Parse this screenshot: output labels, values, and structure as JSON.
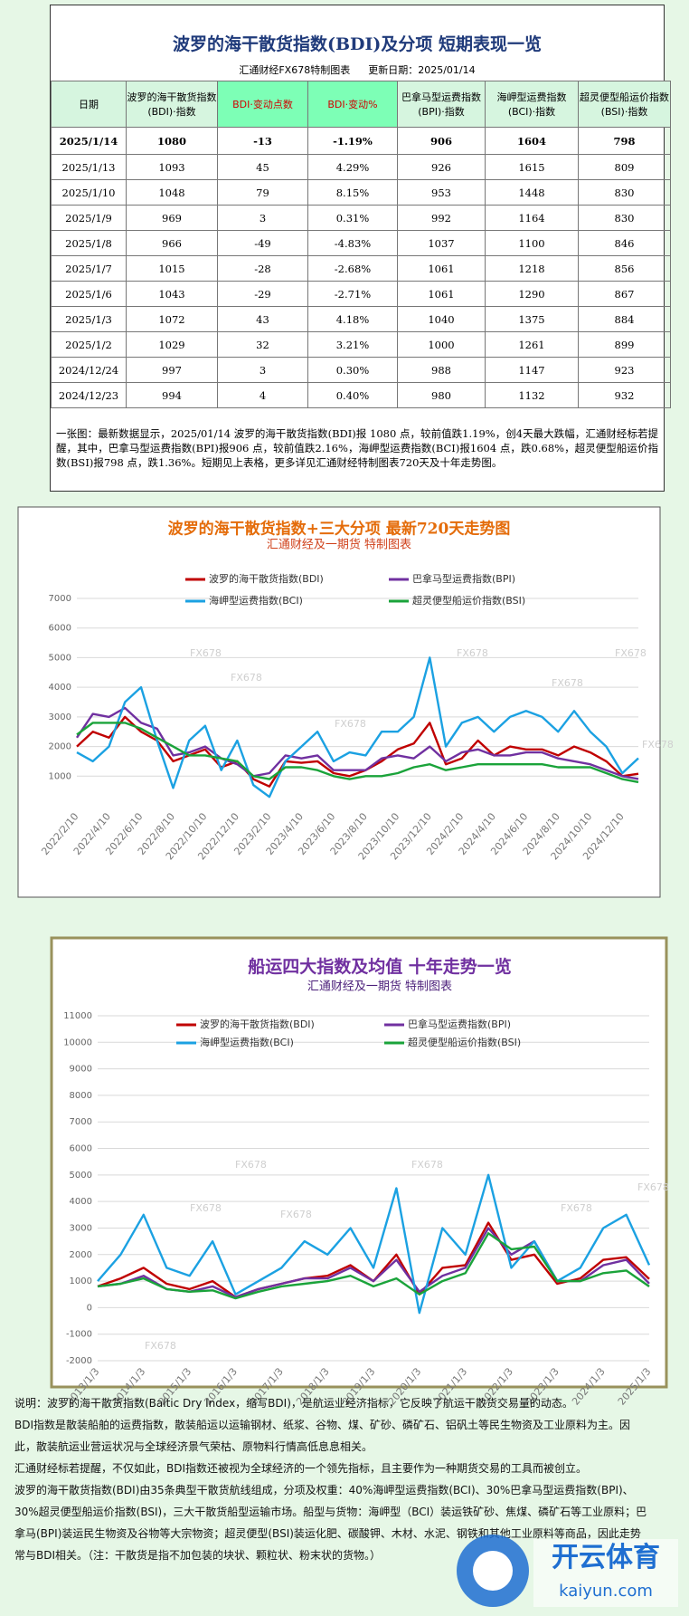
{
  "header": {
    "title": "波罗的海干散货指数(BDI)及分项  短期表现一览",
    "source": "汇通财经FX678特制图表",
    "updated": "更新日期：2025/01/14"
  },
  "table": {
    "header": [
      "日期",
      "波罗的海干散货指数(BDI)·指数",
      "BDI·变动点数",
      "BDI·变动%",
      "巴拿马型运费指数(BPI)·指数",
      "海岬型运费指数(BCI)·指数",
      "超灵便型船运价指数(BSI)·指数"
    ],
    "rows": [
      [
        "2025/1/14",
        "1080",
        "-13",
        "-1.19%",
        "906",
        "1604",
        "798"
      ],
      [
        "2025/1/13",
        "1093",
        "45",
        "4.29%",
        "926",
        "1615",
        "809"
      ],
      [
        "2025/1/10",
        "1048",
        "79",
        "8.15%",
        "953",
        "1448",
        "830"
      ],
      [
        "2025/1/9",
        "969",
        "3",
        "0.31%",
        "992",
        "1164",
        "830"
      ],
      [
        "2025/1/8",
        "966",
        "-49",
        "-4.83%",
        "1037",
        "1100",
        "846"
      ],
      [
        "2025/1/7",
        "1015",
        "-28",
        "-2.68%",
        "1061",
        "1218",
        "856"
      ],
      [
        "2025/1/6",
        "1043",
        "-29",
        "-2.71%",
        "1061",
        "1290",
        "867"
      ],
      [
        "2025/1/3",
        "1072",
        "43",
        "4.18%",
        "1040",
        "1375",
        "884"
      ],
      [
        "2025/1/2",
        "1029",
        "32",
        "3.21%",
        "1000",
        "1261",
        "899"
      ],
      [
        "2024/12/24",
        "997",
        "3",
        "0.30%",
        "988",
        "1147",
        "923"
      ],
      [
        "2024/12/23",
        "994",
        "4",
        "0.40%",
        "980",
        "1132",
        "932"
      ]
    ],
    "note": "一张图：最新数据显示，2025/01/14 波罗的海干散货指数(BDI)报 1080 点，较前值跌1.19%，创4天最大跌幅，汇通财经标若提醒，其中，巴拿马型运费指数(BPI)报906 点，较前值跌2.16%，海岬型运费指数(BCI)报1604 点，跌0.68%，超灵便型船运价指数(BSI)报798 点，跌1.36%。短期见上表格，更多详见汇通财经特制图表720天及十年走势图。"
  },
  "chart_data": [
    {
      "type": "line",
      "title": "波罗的海干散货指数+三大分项  最新720天走势图",
      "subtitle": "汇通财经及一期货  特制图表",
      "categories": [
        "2022/2/10",
        null,
        "2022/4/10",
        null,
        "2022/6/10",
        null,
        "2022/8/10",
        null,
        "2022/10/10",
        null,
        "2022/12/10",
        null,
        "2023/2/10",
        null,
        "2023/4/10",
        null,
        "2023/6/10",
        null,
        "2023/8/10",
        null,
        "2023/10/10",
        null,
        "2023/12/10",
        null,
        "2024/2/10",
        null,
        "2024/4/10",
        null,
        "2024/6/10",
        null,
        "2024/8/10",
        null,
        "2024/10/10",
        null,
        "2024/12/10",
        null
      ],
      "series": [
        {
          "name": "波罗的海干散货指数(BDI)",
          "color": "#c00000",
          "values": [
            2000,
            2500,
            2300,
            3000,
            2500,
            2200,
            1500,
            1700,
            1900,
            1300,
            1500,
            900,
            650,
            1500,
            1450,
            1500,
            1100,
            1000,
            1200,
            1500,
            1900,
            2100,
            2800,
            1400,
            1600,
            2200,
            1700,
            2000,
            1900,
            1900,
            1700,
            2000,
            1800,
            1500,
            1000,
            1080
          ]
        },
        {
          "name": "巴拿马型运费指数(BPI)",
          "color": "#7030a0",
          "values": [
            2300,
            3100,
            3000,
            3300,
            2800,
            2600,
            1700,
            1800,
            2000,
            1600,
            1400,
            1000,
            1100,
            1700,
            1600,
            1700,
            1200,
            1200,
            1200,
            1600,
            1700,
            1600,
            2000,
            1500,
            1800,
            1900,
            1700,
            1700,
            1800,
            1800,
            1600,
            1500,
            1400,
            1200,
            1000,
            906
          ]
        },
        {
          "name": "海岬型运费指数(BCI)",
          "color": "#1ba1e2",
          "values": [
            1800,
            1500,
            2000,
            3500,
            4000,
            2200,
            600,
            2200,
            2700,
            1200,
            2200,
            700,
            300,
            1500,
            2000,
            2500,
            1500,
            1800,
            1700,
            2500,
            2500,
            3000,
            5000,
            2000,
            2800,
            3000,
            2500,
            3000,
            3200,
            3000,
            2500,
            3200,
            2500,
            2000,
            1100,
            1604
          ]
        },
        {
          "name": "超灵便型船运价指数(BSI)",
          "color": "#1aa33a",
          "values": [
            2400,
            2800,
            2800,
            2800,
            2600,
            2300,
            2000,
            1700,
            1700,
            1600,
            1500,
            1000,
            900,
            1300,
            1300,
            1200,
            1000,
            900,
            1000,
            1000,
            1100,
            1300,
            1400,
            1200,
            1300,
            1400,
            1400,
            1400,
            1400,
            1400,
            1300,
            1300,
            1300,
            1100,
            900,
            798
          ]
        }
      ],
      "ylim": [
        0,
        7000
      ],
      "yticks": [
        1000,
        2000,
        3000,
        4000,
        5000,
        6000,
        7000
      ],
      "grid": true,
      "legend": "top",
      "watermarks": [
        "FX678",
        "FX678",
        "FX678",
        "FX678",
        "FX678",
        "FX678",
        "FX678"
      ]
    },
    {
      "type": "line",
      "title": "船运四大指数及均值  十年走势一览",
      "subtitle": "汇通财经及一期货  特制图表",
      "categories": [
        "2013/1/3",
        null,
        "2014/1/3",
        null,
        "2015/1/3",
        null,
        "2016/1/3",
        null,
        "2017/1/3",
        null,
        "2018/1/3",
        null,
        "2019/1/3",
        null,
        "2020/1/3",
        null,
        "2021/1/3",
        null,
        "2022/1/3",
        null,
        "2023/1/3",
        null,
        "2024/1/3",
        null,
        "2025/1/3"
      ],
      "series": [
        {
          "name": "波罗的海干散货指数(BDI)",
          "color": "#c00000",
          "values": [
            800,
            1100,
            1500,
            900,
            700,
            1000,
            400,
            700,
            900,
            1100,
            1200,
            1600,
            1000,
            2000,
            500,
            1500,
            1600,
            3200,
            1800,
            2000,
            900,
            1100,
            1800,
            1900,
            1080
          ]
        },
        {
          "name": "巴拿马型运费指数(BPI)",
          "color": "#7030a0",
          "values": [
            800,
            900,
            1200,
            700,
            600,
            800,
            400,
            700,
            900,
            1100,
            1100,
            1500,
            1000,
            1800,
            600,
            1200,
            1500,
            3000,
            2000,
            2500,
            1000,
            1000,
            1600,
            1800,
            906
          ]
        },
        {
          "name": "海岬型运费指数(BCI)",
          "color": "#1ba1e2",
          "values": [
            1000,
            2000,
            3500,
            1500,
            1200,
            2500,
            500,
            1000,
            1500,
            2500,
            2000,
            3000,
            1500,
            4500,
            -200,
            3000,
            2000,
            5000,
            1500,
            2500,
            1000,
            1500,
            3000,
            3500,
            1604
          ]
        },
        {
          "name": "超灵便型船运价指数(BSI)",
          "color": "#1aa33a",
          "values": [
            800,
            900,
            1100,
            700,
            600,
            650,
            350,
            600,
            800,
            900,
            1000,
            1200,
            800,
            1100,
            500,
            1000,
            1300,
            2800,
            2200,
            2300,
            1000,
            1000,
            1300,
            1400,
            798
          ]
        }
      ],
      "ylim": [
        -2000,
        11000
      ],
      "yticks": [
        -2000,
        -1000,
        0,
        1000,
        2000,
        3000,
        4000,
        5000,
        6000,
        7000,
        8000,
        9000,
        10000,
        11000
      ],
      "grid": true,
      "legend": "top",
      "watermarks": [
        "FX678",
        "FX678",
        "FX678",
        "FX678",
        "FX678",
        "FX678",
        "FX678"
      ]
    }
  ],
  "description": [
    "说明：波罗的海干散货指数(Baltic Dry Index，缩写BDI)，是航运业经济指标，它反映了航运干散货交易量的动态。",
    "BDI指数是散装船舶的运费指数，散装船运以运输钢材、纸浆、谷物、煤、矿砂、磷矿石、铝矾土等民生物资及工业原料为主。因此，散装航运业营运状况与全球经济景气荣枯、原物料行情高低息息相关。",
    "汇通财经标若提醒，不仅如此，BDI指数还被视为全球经济的一个领先指标，且主要作为一种期货交易的工具而被创立。",
    "波罗的海干散货指数(BDI)由35条典型干散货航线组成，分项及权重：40%海岬型运费指数(BCI)、30%巴拿马型运费指数(BPI)、30%超灵便型船运价指数(BSI)，三大干散货船型运输市场。船型与货物：海岬型（BCI）装运铁矿砂、焦煤、磷矿石等工业原料；巴拿马(BPI)装运民生物资及谷物等大宗物资；超灵便型(BSI)装运化肥、碳酸钾、木材、水泥、钢铁和其他工业原料等商品，因此走势常与BDI相关。（注：干散货是指不加包装的块状、颗粒状、粉末状的货物。）"
  ],
  "brand": {
    "name": "开云体育",
    "url": "kaiyun.com"
  }
}
